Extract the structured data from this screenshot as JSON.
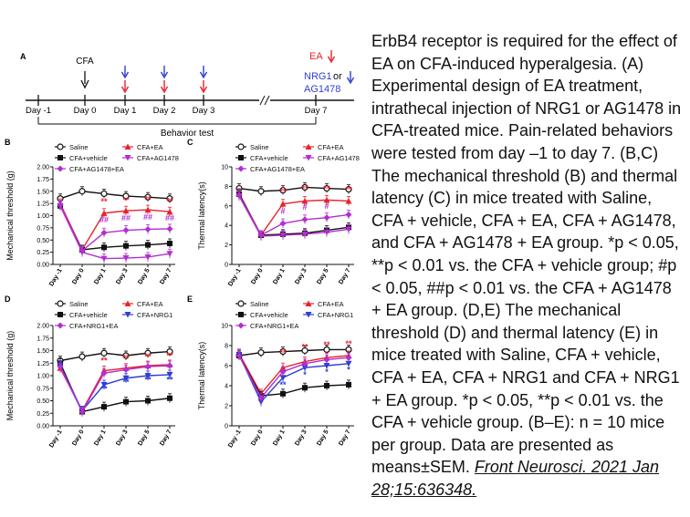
{
  "colors": {
    "saline": "#111111",
    "vehicle": "#111111",
    "ea": "#e8222b",
    "ag": "#b22fd1",
    "agea": "#b22fd1",
    "nrg1": "#2f3ed3",
    "nrg1ea": "#b22fd1",
    "star_red": "#e8222b",
    "star_blue": "#2f3ed3",
    "hash": "#b22fd1"
  },
  "panel_a": {
    "label": "A",
    "cfa_label": "CFA",
    "ea_label": "EA",
    "nrg1_label": "NRG1",
    "or_label": "or",
    "ag_label": "AG1478",
    "days": [
      "Day -1",
      "Day 0",
      "Day 1",
      "Day 2",
      "Day 3",
      "Day 7"
    ],
    "behavior_label": "Behavior test",
    "break_mark": "//",
    "arrow_color_ea": "#e8222b",
    "arrow_color_drug": "#2f3ed3"
  },
  "chart_data": [
    {
      "panel": "B",
      "type": "line",
      "ylabel": "Mechanical threshold (g)",
      "ylim": [
        0,
        2.0
      ],
      "yticks": [
        "0.00",
        "0.25",
        "0.50",
        "0.75",
        "1.00",
        "1.25",
        "1.50",
        "1.75",
        "2.00"
      ],
      "categories": [
        "Day -1",
        "Day 0",
        "Day 1",
        "Day 3",
        "Day 5",
        "Day 7"
      ],
      "legend": [
        "Saline",
        "CFA+EA",
        "CFA+vehicle",
        "CFA+AG1478",
        "CFA+AG1478+EA"
      ],
      "series": [
        {
          "name": "Saline",
          "key": "saline",
          "marker": "circle-open",
          "values": [
            1.35,
            1.5,
            1.45,
            1.4,
            1.38,
            1.35
          ]
        },
        {
          "name": "CFA+EA",
          "key": "ea",
          "marker": "triangle",
          "values": [
            1.25,
            0.3,
            1.05,
            1.1,
            1.12,
            1.08
          ]
        },
        {
          "name": "CFA+vehicle",
          "key": "vehicle",
          "marker": "square",
          "values": [
            1.2,
            0.3,
            0.35,
            0.38,
            0.4,
            0.43
          ]
        },
        {
          "name": "CFA+AG1478",
          "key": "ag",
          "marker": "triangle-down",
          "values": [
            1.2,
            0.25,
            0.12,
            0.13,
            0.15,
            0.22
          ]
        },
        {
          "name": "CFA+AG1478+EA",
          "key": "agea",
          "marker": "diamond",
          "values": [
            1.22,
            0.28,
            0.65,
            0.7,
            0.72,
            0.73
          ]
        }
      ],
      "annotations": [
        {
          "text": "**",
          "color": "star_red",
          "x": 2,
          "y": 1.23
        },
        {
          "text": "**",
          "color": "star_red",
          "x": 3,
          "y": 1.26
        },
        {
          "text": "**",
          "color": "star_red",
          "x": 4,
          "y": 1.28
        },
        {
          "text": "**",
          "color": "star_red",
          "x": 5,
          "y": 1.24
        },
        {
          "text": "##",
          "color": "hash",
          "x": 2,
          "y": 0.86
        },
        {
          "text": "##",
          "color": "hash",
          "x": 3,
          "y": 0.9
        },
        {
          "text": "##",
          "color": "hash",
          "x": 4,
          "y": 0.92
        },
        {
          "text": "##",
          "color": "hash",
          "x": 5,
          "y": 0.9
        }
      ]
    },
    {
      "panel": "C",
      "type": "line",
      "ylabel": "Thermal latency(s)",
      "ylim": [
        0,
        10
      ],
      "yticks": [
        "0",
        "2",
        "4",
        "6",
        "8",
        "10"
      ],
      "categories": [
        "Day -1",
        "Day 0",
        "Day 1",
        "Day 3",
        "Day 5",
        "Day 7"
      ],
      "legend": [
        "Saline",
        "CFA+EA",
        "CFA+vehicle",
        "CFA+AG1478",
        "CFA+AG1478+EA"
      ],
      "series": [
        {
          "name": "Saline",
          "key": "saline",
          "marker": "circle-open",
          "values": [
            7.8,
            7.5,
            7.6,
            7.9,
            7.8,
            7.7
          ]
        },
        {
          "name": "CFA+EA",
          "key": "ea",
          "marker": "triangle",
          "values": [
            7.3,
            3.0,
            6.2,
            6.5,
            6.6,
            6.5
          ]
        },
        {
          "name": "CFA+vehicle",
          "key": "vehicle",
          "marker": "square",
          "values": [
            7.2,
            3.0,
            3.1,
            3.2,
            3.5,
            3.8
          ]
        },
        {
          "name": "CFA+AG1478",
          "key": "ag",
          "marker": "triangle-down",
          "values": [
            7.0,
            2.9,
            3.0,
            3.1,
            3.3,
            3.6
          ]
        },
        {
          "name": "CFA+AG1478+EA",
          "key": "agea",
          "marker": "diamond",
          "values": [
            7.1,
            3.0,
            4.2,
            4.6,
            4.8,
            5.1
          ]
        }
      ],
      "annotations": [
        {
          "text": "**",
          "color": "star_red",
          "x": 2,
          "y": 7.2
        },
        {
          "text": "**",
          "color": "star_red",
          "x": 3,
          "y": 7.5
        },
        {
          "text": "**",
          "color": "star_red",
          "x": 4,
          "y": 7.5
        },
        {
          "text": "**",
          "color": "star_red",
          "x": 5,
          "y": 7.4
        },
        {
          "text": "#",
          "color": "hash",
          "x": 2,
          "y": 5.2
        },
        {
          "text": "#",
          "color": "hash",
          "x": 3,
          "y": 5.6
        },
        {
          "text": "#",
          "color": "hash",
          "x": 4,
          "y": 5.7
        }
      ]
    },
    {
      "panel": "D",
      "type": "line",
      "ylabel": "Mechanical threshold (g)",
      "ylim": [
        0,
        2.0
      ],
      "yticks": [
        "0.00",
        "0.25",
        "0.50",
        "0.75",
        "1.00",
        "1.25",
        "1.50",
        "1.75",
        "2.00"
      ],
      "categories": [
        "Day -1",
        "Day 0",
        "Day 1",
        "Day 3",
        "Day 5",
        "Day 7"
      ],
      "legend": [
        "Saline",
        "CFA+EA",
        "CFA+vehicle",
        "CFA+NRG1",
        "CFA+NRG1+EA"
      ],
      "series": [
        {
          "name": "Saline",
          "key": "saline",
          "marker": "circle-open",
          "values": [
            1.3,
            1.38,
            1.45,
            1.4,
            1.45,
            1.48
          ]
        },
        {
          "name": "CFA+EA",
          "key": "ea",
          "marker": "triangle",
          "values": [
            1.15,
            0.3,
            1.1,
            1.15,
            1.2,
            1.22
          ]
        },
        {
          "name": "CFA+vehicle",
          "key": "vehicle",
          "marker": "square",
          "values": [
            1.25,
            0.28,
            0.38,
            0.48,
            0.5,
            0.55
          ]
        },
        {
          "name": "CFA+NRG1",
          "key": "nrg1",
          "marker": "triangle-down",
          "values": [
            1.2,
            0.3,
            0.82,
            0.95,
            1.0,
            1.02
          ]
        },
        {
          "name": "CFA+NRG1+EA",
          "key": "nrg1ea",
          "marker": "diamond",
          "values": [
            1.18,
            0.28,
            1.05,
            1.12,
            1.18,
            1.2
          ]
        }
      ],
      "annotations": [
        {
          "text": "**",
          "color": "star_red",
          "x": 2,
          "y": 1.25
        },
        {
          "text": "**",
          "color": "star_red",
          "x": 3,
          "y": 1.3
        },
        {
          "text": "**",
          "color": "star_red",
          "x": 4,
          "y": 1.33
        },
        {
          "text": "**",
          "color": "star_red",
          "x": 5,
          "y": 1.35
        },
        {
          "text": "**",
          "color": "star_blue",
          "x": 2,
          "y": 0.68
        },
        {
          "text": "**",
          "color": "star_blue",
          "x": 3,
          "y": 0.82
        },
        {
          "text": "**",
          "color": "star_blue",
          "x": 4,
          "y": 0.86
        },
        {
          "text": "**",
          "color": "star_blue",
          "x": 5,
          "y": 0.86
        }
      ]
    },
    {
      "panel": "E",
      "type": "line",
      "ylabel": "Thermal latency(s)",
      "ylim": [
        0,
        10
      ],
      "yticks": [
        "0",
        "2",
        "4",
        "6",
        "8",
        "10"
      ],
      "categories": [
        "Day -1",
        "Day 0",
        "Day 1",
        "Day 3",
        "Day 5",
        "Day 7"
      ],
      "legend": [
        "Saline",
        "CFA+EA",
        "CFA+vehicle",
        "CFA+NRG1",
        "CFA+NRG1+EA"
      ],
      "series": [
        {
          "name": "Saline",
          "key": "saline",
          "marker": "circle-open",
          "values": [
            7.0,
            7.3,
            7.4,
            7.5,
            7.6,
            7.6
          ]
        },
        {
          "name": "CFA+EA",
          "key": "ea",
          "marker": "triangle",
          "values": [
            7.2,
            3.2,
            5.8,
            6.4,
            6.8,
            7.0
          ]
        },
        {
          "name": "CFA+vehicle",
          "key": "vehicle",
          "marker": "square",
          "values": [
            7.0,
            3.0,
            3.2,
            3.8,
            4.0,
            4.1
          ]
        },
        {
          "name": "CFA+NRG1",
          "key": "nrg1",
          "marker": "triangle-down",
          "values": [
            7.1,
            2.4,
            4.8,
            5.8,
            6.0,
            6.2
          ]
        },
        {
          "name": "CFA+NRG1+EA",
          "key": "nrg1ea",
          "marker": "diamond",
          "values": [
            7.0,
            2.8,
            5.4,
            6.2,
            6.6,
            6.8
          ]
        }
      ],
      "annotations": [
        {
          "text": "**",
          "color": "star_red",
          "x": 2,
          "y": 7.0
        },
        {
          "text": "**",
          "color": "star_red",
          "x": 3,
          "y": 7.6
        },
        {
          "text": "**",
          "color": "star_red",
          "x": 4,
          "y": 7.8
        },
        {
          "text": "**",
          "color": "star_red",
          "x": 5,
          "y": 7.9
        },
        {
          "text": "**",
          "color": "star_blue",
          "x": 2,
          "y": 3.8
        },
        {
          "text": "*",
          "color": "star_blue",
          "x": 3,
          "y": 4.8
        },
        {
          "text": "*",
          "color": "star_blue",
          "x": 4,
          "y": 5.1
        },
        {
          "text": "*",
          "color": "star_blue",
          "x": 5,
          "y": 5.3
        }
      ]
    }
  ],
  "caption": {
    "text": "ErbB4 receptor is required for the effect of EA on CFA-induced hyperalgesia. (A) Experimental design of EA treatment, intrathecal injection of NRG1 or AG1478 in CFA-treated mice. Pain-related behaviors were tested from day –1 to day 7. (B,C) The mechanical threshold (B) and thermal latency (C) in mice treated with Saline, CFA + vehicle, CFA + EA, CFA + AG1478, and CFA + AG1478 + EA group. *p < 0.05, **p < 0.01 vs. the CFA + vehicle group; #p < 0.05, ##p < 0.01 vs. the CFA + AG1478 + EA group. (D,E) The mechanical threshold (D) and thermal latency (E) in mice treated with Saline, CFA + vehicle, CFA + EA, CFA + NRG1 and CFA + NRG1 + EA group. *p < 0.05, **p < 0.01 vs. the CFA + vehicle group. (B–E): n = 10 mice per group. Data are presented as means±SEM. ",
    "citation": "Front Neurosci. 2021 Jan 28;15:636348."
  }
}
